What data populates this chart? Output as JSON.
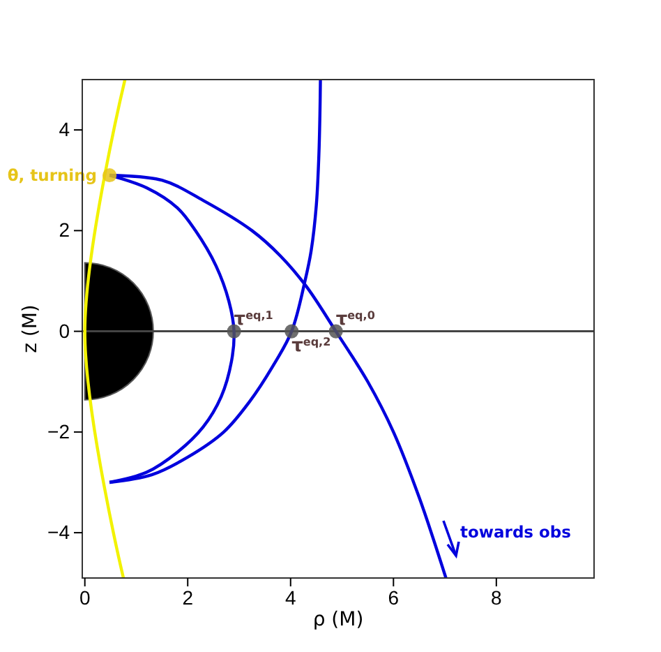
{
  "chart_data": {
    "type": "line",
    "xlabel": "ρ (M)",
    "ylabel": "z (M)",
    "xlim": [
      -0.05,
      9.9
    ],
    "ylim": [
      -4.9,
      5.0
    ],
    "xticks": [
      0,
      2,
      4,
      6,
      8
    ],
    "yticks": [
      {
        "value": -4,
        "label": "−4"
      },
      {
        "value": -2,
        "label": "−2"
      },
      0,
      2,
      4
    ],
    "grid": false,
    "line_style": "solid",
    "ref_lines": [
      {
        "axis": "y",
        "value": 0,
        "color": "#444444"
      }
    ],
    "series": [
      {
        "color": "#f2f200",
        "x": [
          0.78,
          0,
          0.75
        ],
        "values": [
          5.0,
          0,
          -4.9
        ]
      },
      {
        "color": "#0000dd",
        "x": [
          0.48,
          1.2,
          1.8,
          2.15,
          2.55,
          2.8,
          2.9,
          2.85,
          2.65,
          2.3,
          1.8,
          1.2,
          0.48
        ],
        "values": [
          3.1,
          2.85,
          2.45,
          2.0,
          1.3,
          0.6,
          0,
          -0.6,
          -1.3,
          -1.9,
          -2.4,
          -2.8,
          -3.0
        ]
      },
      {
        "color": "#0000dd",
        "x": [
          0.48,
          1.3,
          2.0,
          2.7,
          3.2,
          3.65,
          4.02,
          4.28,
          4.4,
          4.5,
          4.55,
          4.57,
          4.58
        ],
        "values": [
          -3.0,
          -2.85,
          -2.5,
          -2.0,
          -1.4,
          -0.7,
          0,
          1.0,
          1.6,
          2.5,
          3.5,
          4.3,
          5.0
        ]
      },
      {
        "color": "#0000dd",
        "x": [
          0.48,
          1.5,
          2.3,
          3.25,
          3.8,
          4.3,
          4.88,
          5.5,
          6.0,
          6.5,
          7.02
        ],
        "values": [
          3.1,
          3.0,
          2.6,
          2.0,
          1.5,
          0.9,
          0,
          -1.0,
          -2.0,
          -3.3,
          -4.9
        ]
      },
      {
        "type": "scatter",
        "marker": "circle",
        "color": "#555555",
        "x": [
          2.9,
          4.02,
          4.88
        ],
        "values": [
          0,
          0,
          0
        ]
      },
      {
        "type": "scatter",
        "marker": "circle",
        "name": "θ, turning",
        "color": "#e6c419",
        "x": [
          0.48
        ],
        "values": [
          3.1
        ]
      }
    ],
    "annotations": [
      {
        "text": "τ$^{eq,1}$",
        "x": 2.9,
        "y": 0
      },
      {
        "text": "τ$^{eq,2}$",
        "x": 4.02,
        "y": 0
      },
      {
        "text": "τ$^{eq,0}$",
        "x": 4.88,
        "y": 0
      },
      "towards obs"
    ]
  }
}
